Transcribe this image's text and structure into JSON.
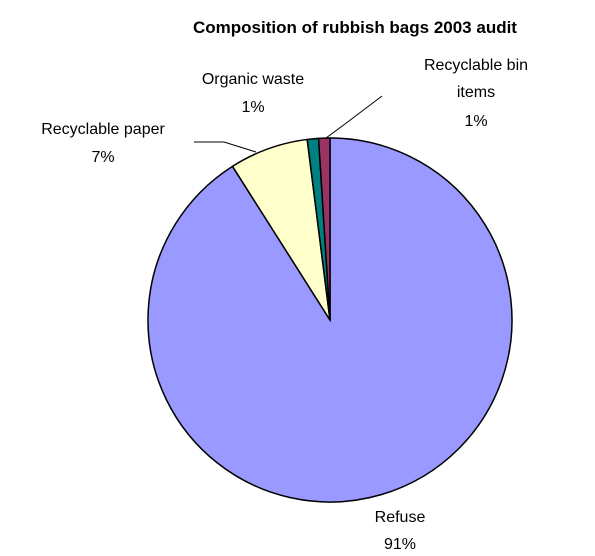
{
  "chart_data": {
    "type": "pie",
    "title": "Composition of rubbish bags 2003 audit",
    "slices": [
      {
        "name": "Refuse",
        "value": 91,
        "label": "91%",
        "color": "#9999ff"
      },
      {
        "name": "Recyclable paper",
        "value": 7,
        "label": "7%",
        "color": "#ffffcc"
      },
      {
        "name": "Organic waste",
        "value": 1,
        "label": "1%",
        "color": "#008080"
      },
      {
        "name": "Recyclable bin items",
        "value": 1,
        "label": "1%",
        "color": "#993366"
      }
    ],
    "label_lines": {
      "recyclable_bin_items": [
        "Recyclable bin",
        "items"
      ]
    },
    "legend": "none"
  }
}
